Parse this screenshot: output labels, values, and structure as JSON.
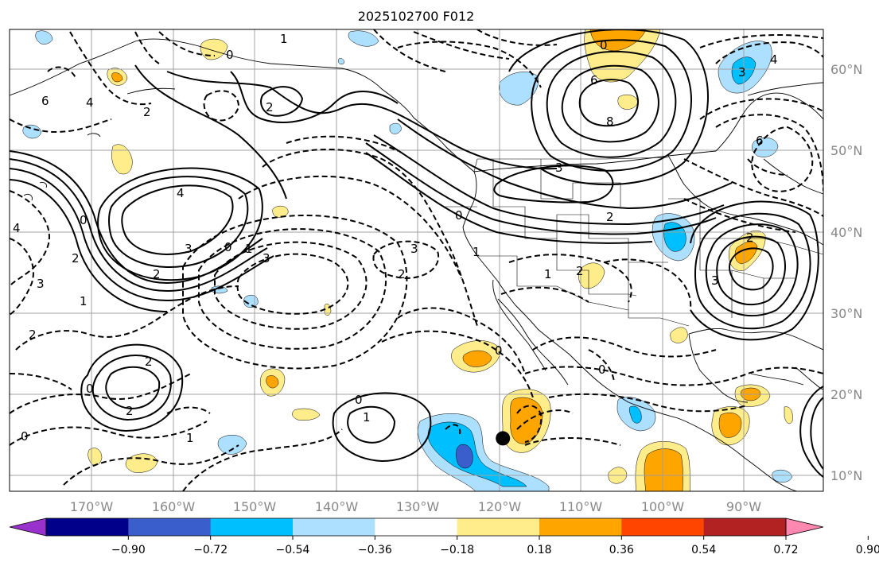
{
  "title": "2025102700 F012",
  "longitude_labels": [
    "170°W",
    "160°W",
    "150°W",
    "140°W",
    "130°W",
    "120°W",
    "110°W",
    "100°W",
    "90°W"
  ],
  "latitude_labels": [
    "60°N",
    "50°N",
    "40°N",
    "30°N",
    "20°N",
    "10°N"
  ],
  "colorbar": {
    "colors": [
      "#9932CC",
      "#00008B",
      "#3A5FCD",
      "#00BFFF",
      "#ADDFFF",
      "#FFFFFF",
      "#FFEC8B",
      "#FFA500",
      "#FF4500",
      "#B22222",
      "#FF88B0"
    ],
    "tick_labels": [
      "−0.90",
      "−0.72",
      "−0.54",
      "−0.36",
      "−0.18",
      "0.18",
      "0.36",
      "0.54",
      "0.72",
      "0.90"
    ]
  },
  "contour_labels": {
    "l0": "4",
    "l1": "0",
    "l2": "3",
    "l3": "2",
    "l4": "1",
    "l5": "0",
    "l6": "4",
    "l7": "3",
    "l8": "2",
    "l9": "0",
    "l10": "1",
    "l11": "3",
    "l12": "2",
    "l13": "3",
    "l14": "2",
    "l15": "2",
    "l16": "2",
    "l17": "0",
    "l18": "1",
    "l19": "0",
    "l20": "1",
    "l21": "1",
    "l22": "6",
    "l23": "8",
    "l24": "3",
    "l25": "2",
    "l26": "6",
    "l27": "4",
    "l28": "3",
    "l29": "6",
    "l30": "3",
    "l31": "0",
    "l32": "0",
    "l33": "0",
    "l34": "1",
    "l35": "2",
    "l36": "2",
    "l37": "4",
    "l38": "0",
    "l39": "2",
    "l40": "0",
    "l41": "1",
    "l42": "2"
  },
  "marker": {
    "name": "storm-center",
    "lon": -119.5,
    "lat": 14.5
  }
}
